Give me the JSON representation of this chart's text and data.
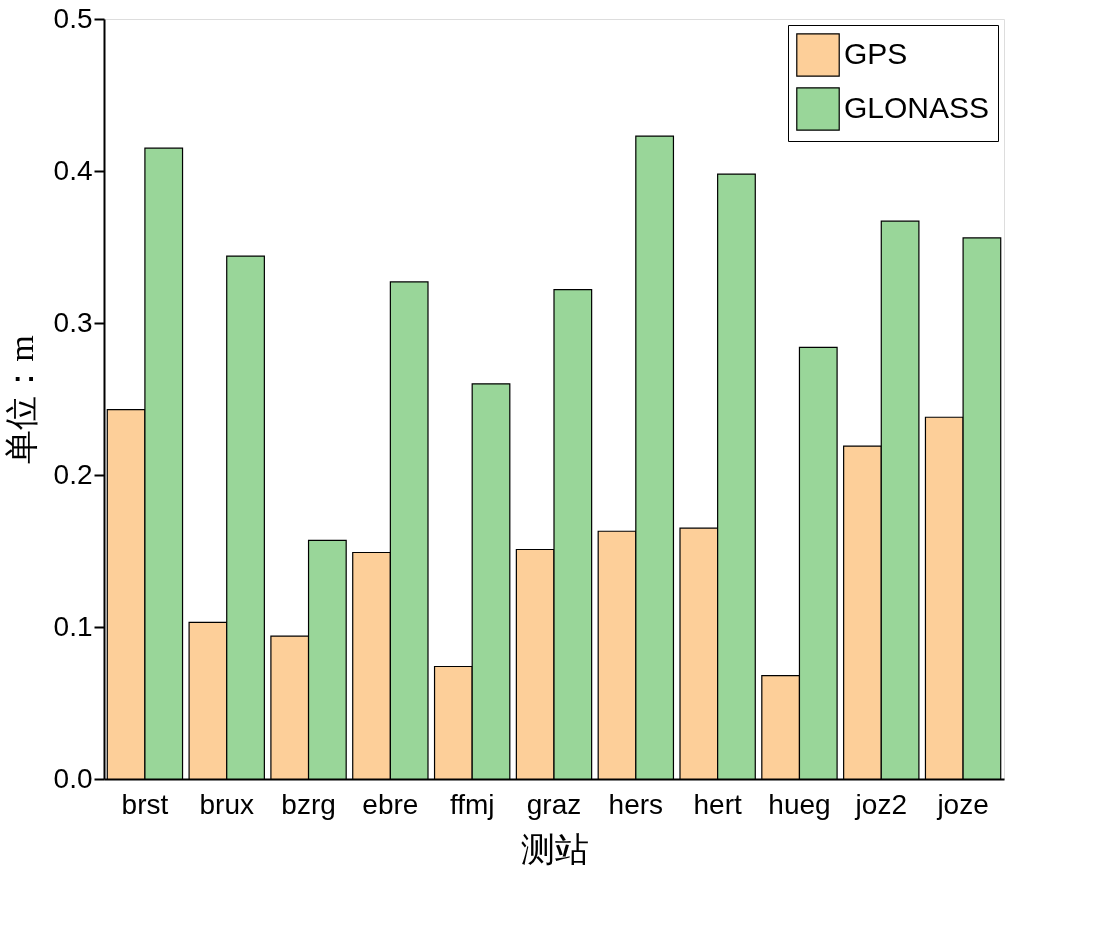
{
  "chart_data": {
    "type": "bar",
    "xlabel": "测站",
    "ylabel": "单位：m",
    "categories": [
      "brst",
      "brux",
      "bzrg",
      "ebre",
      "ffmj",
      "graz",
      "hers",
      "hert",
      "hueg",
      "joz2",
      "joze"
    ],
    "series": [
      {
        "name": "GPS",
        "color": "#fdcf99",
        "values": [
          0.243,
          0.103,
          0.094,
          0.149,
          0.074,
          0.151,
          0.163,
          0.165,
          0.068,
          0.219,
          0.238
        ]
      },
      {
        "name": "GLONASS",
        "color": "#99d699",
        "values": [
          0.415,
          0.344,
          0.157,
          0.327,
          0.26,
          0.322,
          0.423,
          0.398,
          0.284,
          0.367,
          0.356
        ]
      }
    ],
    "ylim": [
      0,
      0.5
    ],
    "yticks": [
      {
        "value": 0,
        "label": "0.0"
      },
      0.1,
      0.2,
      0.3,
      0.4,
      0.5
    ],
    "legend": "top right",
    "grid": false
  }
}
